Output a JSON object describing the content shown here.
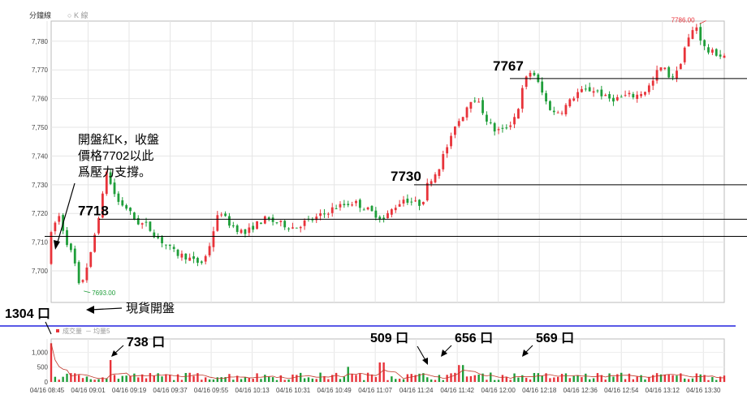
{
  "header": {
    "tab_minute": "分鐘線",
    "tab_k": "K 線"
  },
  "chart_data": {
    "type": "candlestick",
    "price_axis": {
      "ticks": [
        7700,
        7710,
        7720,
        7730,
        7740,
        7750,
        7760,
        7770,
        7780
      ],
      "ylim": [
        7689,
        7787
      ]
    },
    "volume_axis": {
      "ticks": [
        0,
        500,
        1000
      ],
      "ylim": [
        0,
        1450
      ]
    },
    "time_labels": [
      "04/16 08:45",
      "04/16 09:01",
      "04/16 09:19",
      "04/16 09:37",
      "04/16 09:55",
      "04/16 10:13",
      "04/16 10:31",
      "04/16 10:49",
      "04/16 11:07",
      "04/16 11:24",
      "04/16 11:42",
      "04/16 12:00",
      "04/16 12:18",
      "04/16 12:36",
      "04/16 12:54",
      "04/16 13:12",
      "04/16 13:30"
    ],
    "volume_legend": {
      "vol": "成交量",
      "ma": "均量5"
    },
    "high_label": "7786.00",
    "low_label": "7693.00",
    "reference_lines": [
      7712,
      7718,
      7730,
      7767
    ],
    "session_key_prices": {
      "open": 7703,
      "low": 7693,
      "high": 7786,
      "close": 7775
    },
    "price_path": [
      [
        0,
        7703
      ],
      [
        5,
        7715
      ],
      [
        12,
        7719
      ],
      [
        20,
        7710
      ],
      [
        27,
        7704
      ],
      [
        33,
        7693
      ],
      [
        38,
        7700
      ],
      [
        43,
        7704
      ],
      [
        50,
        7716
      ],
      [
        56,
        7726
      ],
      [
        60,
        7735
      ],
      [
        65,
        7729
      ],
      [
        72,
        7724
      ],
      [
        80,
        7722
      ],
      [
        90,
        7717
      ],
      [
        100,
        7716
      ],
      [
        110,
        7712
      ],
      [
        120,
        7709
      ],
      [
        130,
        7706
      ],
      [
        140,
        7705
      ],
      [
        150,
        7703
      ],
      [
        158,
        7703
      ],
      [
        165,
        7710
      ],
      [
        170,
        7717
      ],
      [
        175,
        7721
      ],
      [
        182,
        7717
      ],
      [
        190,
        7715
      ],
      [
        200,
        7713
      ],
      [
        210,
        7716
      ],
      [
        220,
        7718
      ],
      [
        230,
        7717
      ],
      [
        240,
        7716
      ],
      [
        250,
        7715
      ],
      [
        260,
        7717
      ],
      [
        270,
        7718
      ],
      [
        280,
        7720
      ],
      [
        290,
        7722
      ],
      [
        300,
        7723
      ],
      [
        310,
        7724
      ],
      [
        320,
        7722
      ],
      [
        330,
        7720
      ],
      [
        340,
        7718
      ],
      [
        350,
        7722
      ],
      [
        360,
        7725
      ],
      [
        370,
        7724
      ],
      [
        375,
        7723
      ],
      [
        380,
        7725
      ],
      [
        385,
        7731
      ],
      [
        392,
        7734
      ],
      [
        397,
        7737
      ],
      [
        402,
        7742
      ],
      [
        408,
        7746
      ],
      [
        412,
        7751
      ],
      [
        418,
        7753
      ],
      [
        425,
        7758
      ],
      [
        430,
        7761
      ],
      [
        438,
        7757
      ],
      [
        445,
        7752
      ],
      [
        452,
        7749
      ],
      [
        460,
        7749
      ],
      [
        470,
        7752
      ],
      [
        476,
        7757
      ],
      [
        480,
        7763
      ],
      [
        485,
        7768
      ],
      [
        490,
        7770
      ],
      [
        495,
        7766
      ],
      [
        500,
        7762
      ],
      [
        505,
        7758
      ],
      [
        512,
        7755
      ],
      [
        520,
        7756
      ],
      [
        528,
        7759
      ],
      [
        535,
        7762
      ],
      [
        545,
        7763
      ],
      [
        555,
        7763
      ],
      [
        565,
        7760
      ],
      [
        575,
        7760
      ],
      [
        585,
        7761
      ],
      [
        595,
        7761
      ],
      [
        605,
        7763
      ],
      [
        612,
        7766
      ],
      [
        617,
        7770
      ],
      [
        622,
        7771
      ],
      [
        628,
        7768
      ],
      [
        635,
        7768
      ],
      [
        640,
        7773
      ],
      [
        645,
        7779
      ],
      [
        650,
        7782
      ],
      [
        655,
        7786
      ],
      [
        660,
        7781
      ],
      [
        665,
        7777
      ],
      [
        670,
        7776
      ],
      [
        675,
        7776
      ],
      [
        680,
        7775
      ]
    ],
    "volume_spikes": [
      [
        0,
        1304
      ],
      [
        60,
        738
      ],
      [
        300,
        509
      ],
      [
        335,
        656
      ],
      [
        415,
        569
      ]
    ]
  },
  "annotations": {
    "open_note": [
      "開盤紅K，收盤",
      "價格7702以此",
      "爲壓力支撐。"
    ],
    "spot_open": "現貨開盤",
    "lvl_7718": "7718",
    "lvl_7730": "7730",
    "lvl_7767": "7767",
    "vol_1304": "1304 口",
    "vol_738": "738 口",
    "vol_509": "509 口",
    "vol_656": "656 口",
    "vol_569": "569 口"
  }
}
